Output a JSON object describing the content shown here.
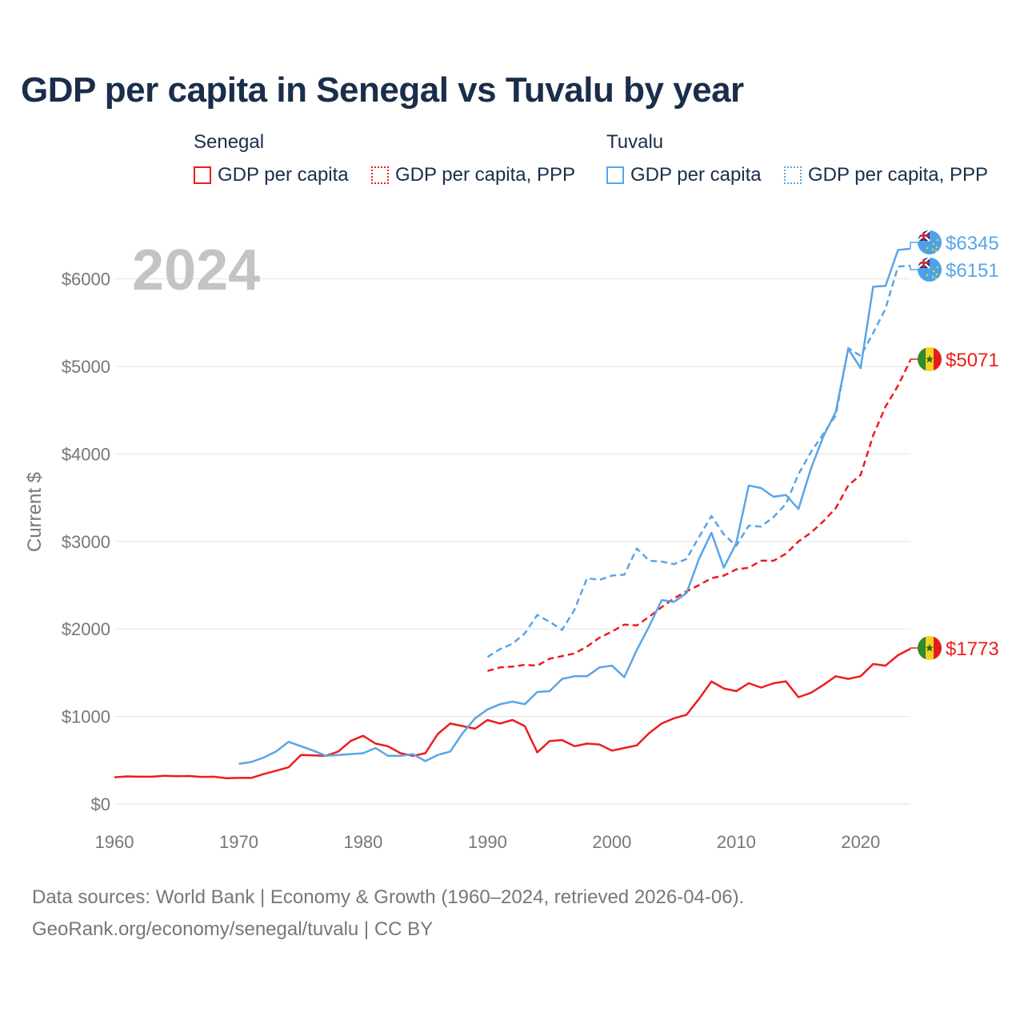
{
  "title": "GDP per capita in Senegal vs Tuvalu by year",
  "legend": {
    "senegal": {
      "country": "Senegal",
      "gdp": "GDP per capita",
      "ppp": "GDP per capita, PPP"
    },
    "tuvalu": {
      "country": "Tuvalu",
      "gdp": "GDP per capita",
      "ppp": "GDP per capita, PPP"
    }
  },
  "colors": {
    "senegal": "#ee1c1c",
    "tuvalu": "#5aa5e6",
    "grid": "#e3e3e3",
    "axis_text": "#777777",
    "year_label": "#c4c4c4"
  },
  "footer": {
    "line1": "Data sources: World Bank | Economy & Growth (1960–2024, retrieved 2026-04-06).",
    "line2": "GeoRank.org/economy/senegal/tuvalu | CC BY"
  },
  "chart_data": {
    "type": "line",
    "title": "GDP per capita in Senegal vs Tuvalu by year",
    "year_label": "2024",
    "ylabel": "Current $",
    "xlabel": "",
    "xlim": [
      1960,
      2024
    ],
    "ylim": [
      0,
      6600
    ],
    "x_ticks": [
      1960,
      1970,
      1980,
      1990,
      2000,
      2010,
      2020
    ],
    "y_ticks": [
      0,
      1000,
      2000,
      3000,
      4000,
      5000,
      6000
    ],
    "y_tick_labels": [
      "$0",
      "$1000",
      "$2000",
      "$3000",
      "$4000",
      "$5000",
      "$6000"
    ],
    "series": [
      {
        "name": "Senegal GDP per capita",
        "country": "senegal",
        "dashed": false,
        "end_label": "$1773",
        "x": [
          1960,
          1961,
          1962,
          1963,
          1964,
          1965,
          1966,
          1967,
          1968,
          1969,
          1970,
          1971,
          1972,
          1973,
          1974,
          1975,
          1976,
          1977,
          1978,
          1979,
          1980,
          1981,
          1982,
          1983,
          1984,
          1985,
          1986,
          1987,
          1988,
          1989,
          1990,
          1991,
          1992,
          1993,
          1994,
          1995,
          1996,
          1997,
          1998,
          1999,
          2000,
          2001,
          2002,
          2003,
          2004,
          2005,
          2006,
          2007,
          2008,
          2009,
          2010,
          2011,
          2012,
          2013,
          2014,
          2015,
          2016,
          2017,
          2018,
          2019,
          2020,
          2021,
          2022,
          2023,
          2024
        ],
        "values": [
          305,
          315,
          312,
          312,
          322,
          318,
          320,
          310,
          312,
          295,
          298,
          298,
          342,
          380,
          420,
          560,
          555,
          550,
          600,
          720,
          780,
          690,
          660,
          580,
          550,
          580,
          800,
          920,
          890,
          860,
          960,
          920,
          960,
          890,
          590,
          720,
          730,
          660,
          690,
          680,
          610,
          640,
          670,
          810,
          920,
          980,
          1020,
          1200,
          1400,
          1320,
          1290,
          1380,
          1330,
          1380,
          1400,
          1220,
          1270,
          1360,
          1460,
          1430,
          1460,
          1600,
          1580,
          1700,
          1773
        ]
      },
      {
        "name": "Senegal GDP per capita, PPP",
        "country": "senegal",
        "dashed": true,
        "end_label": "$5071",
        "x": [
          1990,
          1991,
          1992,
          1993,
          1994,
          1995,
          1996,
          1997,
          1998,
          1999,
          2000,
          2001,
          2002,
          2003,
          2004,
          2005,
          2006,
          2007,
          2008,
          2009,
          2010,
          2011,
          2012,
          2013,
          2014,
          2015,
          2016,
          2017,
          2018,
          2019,
          2020,
          2021,
          2022,
          2023,
          2024
        ],
        "values": [
          1520,
          1560,
          1570,
          1590,
          1580,
          1660,
          1690,
          1720,
          1800,
          1900,
          1970,
          2050,
          2040,
          2140,
          2250,
          2350,
          2430,
          2500,
          2580,
          2610,
          2680,
          2700,
          2780,
          2780,
          2860,
          3000,
          3100,
          3230,
          3380,
          3640,
          3760,
          4210,
          4540,
          4780,
          5071
        ]
      },
      {
        "name": "Tuvalu GDP per capita",
        "country": "tuvalu",
        "dashed": false,
        "end_label": "$6345",
        "x": [
          1970,
          1971,
          1972,
          1973,
          1974,
          1975,
          1976,
          1977,
          1978,
          1979,
          1980,
          1981,
          1982,
          1983,
          1984,
          1985,
          1986,
          1987,
          1988,
          1989,
          1990,
          1991,
          1992,
          1993,
          1994,
          1995,
          1996,
          1997,
          1998,
          1999,
          2000,
          2001,
          2002,
          2003,
          2004,
          2005,
          2006,
          2007,
          2008,
          2009,
          2010,
          2011,
          2012,
          2013,
          2014,
          2015,
          2016,
          2017,
          2018,
          2019,
          2020,
          2021,
          2022,
          2023,
          2024
        ],
        "values": [
          460,
          480,
          530,
          600,
          710,
          660,
          610,
          550,
          560,
          570,
          580,
          640,
          550,
          550,
          570,
          490,
          560,
          600,
          810,
          980,
          1080,
          1140,
          1170,
          1140,
          1280,
          1290,
          1430,
          1460,
          1460,
          1560,
          1580,
          1450,
          1760,
          2030,
          2330,
          2310,
          2410,
          2800,
          3100,
          2700,
          2980,
          3640,
          3610,
          3510,
          3530,
          3370,
          3830,
          4200,
          4480,
          5200,
          4980,
          5910,
          5920,
          6330,
          6345
        ]
      },
      {
        "name": "Tuvalu GDP per capita, PPP",
        "country": "tuvalu",
        "dashed": true,
        "end_label": "$6151",
        "x": [
          1990,
          1991,
          1992,
          1993,
          1994,
          1995,
          1996,
          1997,
          1998,
          1999,
          2000,
          2001,
          2002,
          2003,
          2004,
          2005,
          2006,
          2007,
          2008,
          2009,
          2010,
          2011,
          2012,
          2013,
          2014,
          2015,
          2016,
          2017,
          2018,
          2019,
          2020,
          2021,
          2022,
          2023,
          2024
        ],
        "values": [
          1680,
          1770,
          1830,
          1950,
          2160,
          2080,
          1990,
          2220,
          2580,
          2560,
          2610,
          2620,
          2920,
          2780,
          2770,
          2740,
          2800,
          3050,
          3290,
          3080,
          2950,
          3180,
          3170,
          3280,
          3430,
          3770,
          4020,
          4230,
          4440,
          5210,
          5120,
          5380,
          5660,
          6140,
          6151
        ]
      }
    ]
  }
}
